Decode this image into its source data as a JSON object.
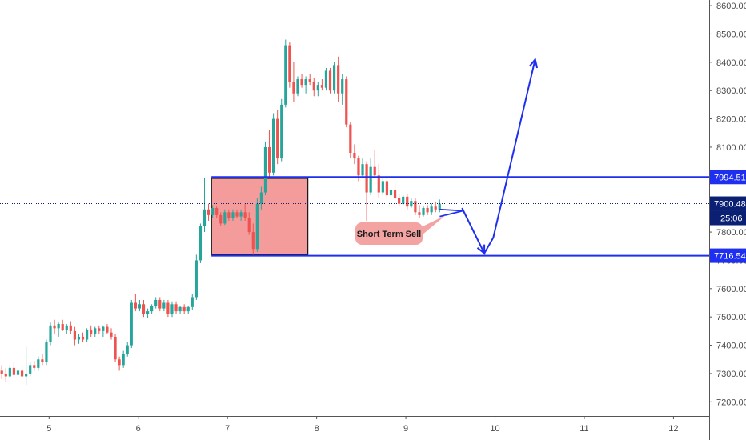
{
  "chart_data": {
    "type": "candlestick",
    "x": {
      "tick_labels": [
        "5",
        "6",
        "7",
        "8",
        "9",
        "10",
        "11",
        "12"
      ],
      "range": [
        4.45,
        12.4
      ]
    },
    "y": {
      "tick_labels": [
        "7200.00",
        "7300.00",
        "7400.00",
        "7500.00",
        "7600.00",
        "7700.00",
        "7800.00",
        "7900.00",
        "8000.00",
        "8100.00",
        "8200.00",
        "8300.00",
        "8400.00",
        "8500.00",
        "8600.00"
      ],
      "range": [
        7150,
        8620
      ]
    },
    "candles": [
      {
        "o": 7310,
        "h": 7330,
        "l": 7280,
        "c": 7300
      },
      {
        "o": 7300,
        "h": 7320,
        "l": 7270,
        "c": 7290
      },
      {
        "o": 7290,
        "h": 7330,
        "l": 7285,
        "c": 7320
      },
      {
        "o": 7320,
        "h": 7340,
        "l": 7290,
        "c": 7295
      },
      {
        "o": 7295,
        "h": 7315,
        "l": 7280,
        "c": 7310
      },
      {
        "o": 7310,
        "h": 7330,
        "l": 7285,
        "c": 7290
      },
      {
        "o": 7290,
        "h": 7395,
        "l": 7260,
        "c": 7300
      },
      {
        "o": 7300,
        "h": 7340,
        "l": 7290,
        "c": 7330
      },
      {
        "o": 7330,
        "h": 7345,
        "l": 7310,
        "c": 7320
      },
      {
        "o": 7320,
        "h": 7360,
        "l": 7310,
        "c": 7350
      },
      {
        "o": 7350,
        "h": 7370,
        "l": 7330,
        "c": 7340
      },
      {
        "o": 7340,
        "h": 7420,
        "l": 7330,
        "c": 7410
      },
      {
        "o": 7410,
        "h": 7480,
        "l": 7400,
        "c": 7470
      },
      {
        "o": 7470,
        "h": 7490,
        "l": 7440,
        "c": 7460
      },
      {
        "o": 7460,
        "h": 7480,
        "l": 7430,
        "c": 7475
      },
      {
        "o": 7475,
        "h": 7490,
        "l": 7450,
        "c": 7455
      },
      {
        "o": 7455,
        "h": 7475,
        "l": 7440,
        "c": 7470
      },
      {
        "o": 7470,
        "h": 7485,
        "l": 7440,
        "c": 7450
      },
      {
        "o": 7450,
        "h": 7465,
        "l": 7400,
        "c": 7420
      },
      {
        "o": 7420,
        "h": 7440,
        "l": 7405,
        "c": 7430
      },
      {
        "o": 7430,
        "h": 7445,
        "l": 7410,
        "c": 7420
      },
      {
        "o": 7420,
        "h": 7460,
        "l": 7410,
        "c": 7455
      },
      {
        "o": 7455,
        "h": 7470,
        "l": 7430,
        "c": 7440
      },
      {
        "o": 7440,
        "h": 7465,
        "l": 7430,
        "c": 7460
      },
      {
        "o": 7460,
        "h": 7470,
        "l": 7440,
        "c": 7450
      },
      {
        "o": 7450,
        "h": 7470,
        "l": 7430,
        "c": 7465
      },
      {
        "o": 7465,
        "h": 7475,
        "l": 7440,
        "c": 7445
      },
      {
        "o": 7445,
        "h": 7460,
        "l": 7420,
        "c": 7430
      },
      {
        "o": 7430,
        "h": 7440,
        "l": 7340,
        "c": 7350
      },
      {
        "o": 7350,
        "h": 7360,
        "l": 7310,
        "c": 7330
      },
      {
        "o": 7330,
        "h": 7380,
        "l": 7320,
        "c": 7370
      },
      {
        "o": 7370,
        "h": 7410,
        "l": 7360,
        "c": 7400
      },
      {
        "o": 7400,
        "h": 7560,
        "l": 7390,
        "c": 7550
      },
      {
        "o": 7550,
        "h": 7580,
        "l": 7520,
        "c": 7530
      },
      {
        "o": 7530,
        "h": 7560,
        "l": 7520,
        "c": 7545
      },
      {
        "o": 7545,
        "h": 7560,
        "l": 7500,
        "c": 7510
      },
      {
        "o": 7510,
        "h": 7530,
        "l": 7495,
        "c": 7520
      },
      {
        "o": 7520,
        "h": 7545,
        "l": 7510,
        "c": 7540
      },
      {
        "o": 7540,
        "h": 7570,
        "l": 7530,
        "c": 7560
      },
      {
        "o": 7560,
        "h": 7570,
        "l": 7520,
        "c": 7530
      },
      {
        "o": 7530,
        "h": 7560,
        "l": 7520,
        "c": 7550
      },
      {
        "o": 7550,
        "h": 7560,
        "l": 7500,
        "c": 7510
      },
      {
        "o": 7510,
        "h": 7555,
        "l": 7500,
        "c": 7545
      },
      {
        "o": 7545,
        "h": 7555,
        "l": 7510,
        "c": 7520
      },
      {
        "o": 7520,
        "h": 7540,
        "l": 7510,
        "c": 7535
      },
      {
        "o": 7535,
        "h": 7545,
        "l": 7510,
        "c": 7520
      },
      {
        "o": 7520,
        "h": 7540,
        "l": 7510,
        "c": 7535
      },
      {
        "o": 7535,
        "h": 7580,
        "l": 7525,
        "c": 7570
      },
      {
        "o": 7570,
        "h": 7720,
        "l": 7560,
        "c": 7700
      },
      {
        "o": 7700,
        "h": 7830,
        "l": 7690,
        "c": 7820
      },
      {
        "o": 7820,
        "h": 7990,
        "l": 7800,
        "c": 7880
      },
      {
        "o": 7880,
        "h": 7900,
        "l": 7840,
        "c": 7860
      },
      {
        "o": 7860,
        "h": 7895,
        "l": 7850,
        "c": 7885
      },
      {
        "o": 7885,
        "h": 7890,
        "l": 7850,
        "c": 7860
      },
      {
        "o": 7860,
        "h": 7870,
        "l": 7820,
        "c": 7830
      },
      {
        "o": 7830,
        "h": 7880,
        "l": 7825,
        "c": 7870
      },
      {
        "o": 7870,
        "h": 7880,
        "l": 7840,
        "c": 7850
      },
      {
        "o": 7850,
        "h": 7880,
        "l": 7840,
        "c": 7870
      },
      {
        "o": 7870,
        "h": 7880,
        "l": 7850,
        "c": 7855
      },
      {
        "o": 7855,
        "h": 7880,
        "l": 7840,
        "c": 7870
      },
      {
        "o": 7870,
        "h": 7900,
        "l": 7840,
        "c": 7850
      },
      {
        "o": 7850,
        "h": 7870,
        "l": 7790,
        "c": 7800
      },
      {
        "o": 7800,
        "h": 7830,
        "l": 7720,
        "c": 7740
      },
      {
        "o": 7740,
        "h": 7920,
        "l": 7730,
        "c": 7900
      },
      {
        "o": 7900,
        "h": 7960,
        "l": 7880,
        "c": 7940
      },
      {
        "o": 7940,
        "h": 8120,
        "l": 7930,
        "c": 8100
      },
      {
        "o": 8100,
        "h": 8160,
        "l": 7990,
        "c": 8010
      },
      {
        "o": 8010,
        "h": 8220,
        "l": 8000,
        "c": 8200
      },
      {
        "o": 8200,
        "h": 8230,
        "l": 8040,
        "c": 8060
      },
      {
        "o": 8060,
        "h": 8270,
        "l": 8050,
        "c": 8250
      },
      {
        "o": 8250,
        "h": 8480,
        "l": 8240,
        "c": 8460
      },
      {
        "o": 8460,
        "h": 8470,
        "l": 8310,
        "c": 8330
      },
      {
        "o": 8330,
        "h": 8400,
        "l": 8260,
        "c": 8290
      },
      {
        "o": 8290,
        "h": 8350,
        "l": 8280,
        "c": 8340
      },
      {
        "o": 8340,
        "h": 8360,
        "l": 8310,
        "c": 8320
      },
      {
        "o": 8320,
        "h": 8350,
        "l": 8290,
        "c": 8340
      },
      {
        "o": 8340,
        "h": 8360,
        "l": 8320,
        "c": 8330
      },
      {
        "o": 8330,
        "h": 8345,
        "l": 8280,
        "c": 8300
      },
      {
        "o": 8300,
        "h": 8330,
        "l": 8280,
        "c": 8320
      },
      {
        "o": 8320,
        "h": 8340,
        "l": 8300,
        "c": 8310
      },
      {
        "o": 8310,
        "h": 8380,
        "l": 8300,
        "c": 8370
      },
      {
        "o": 8370,
        "h": 8380,
        "l": 8290,
        "c": 8300
      },
      {
        "o": 8300,
        "h": 8400,
        "l": 8290,
        "c": 8390
      },
      {
        "o": 8390,
        "h": 8420,
        "l": 8260,
        "c": 8290
      },
      {
        "o": 8290,
        "h": 8360,
        "l": 8250,
        "c": 8340
      },
      {
        "o": 8340,
        "h": 8350,
        "l": 8170,
        "c": 8180
      },
      {
        "o": 8180,
        "h": 8190,
        "l": 8060,
        "c": 8080
      },
      {
        "o": 8080,
        "h": 8110,
        "l": 8040,
        "c": 8060
      },
      {
        "o": 8060,
        "h": 8070,
        "l": 7980,
        "c": 8000
      },
      {
        "o": 8000,
        "h": 8060,
        "l": 7990,
        "c": 8040
      },
      {
        "o": 8040,
        "h": 8050,
        "l": 7840,
        "c": 7940
      },
      {
        "o": 7940,
        "h": 8060,
        "l": 7930,
        "c": 8030
      },
      {
        "o": 8030,
        "h": 8090,
        "l": 7990,
        "c": 8000
      },
      {
        "o": 8000,
        "h": 8040,
        "l": 7920,
        "c": 7940
      },
      {
        "o": 7940,
        "h": 7990,
        "l": 7930,
        "c": 7980
      },
      {
        "o": 7980,
        "h": 8000,
        "l": 7920,
        "c": 7930
      },
      {
        "o": 7930,
        "h": 7960,
        "l": 7910,
        "c": 7950
      },
      {
        "o": 7950,
        "h": 7970,
        "l": 7910,
        "c": 7920
      },
      {
        "o": 7920,
        "h": 7935,
        "l": 7890,
        "c": 7900
      },
      {
        "o": 7900,
        "h": 7930,
        "l": 7895,
        "c": 7925
      },
      {
        "o": 7925,
        "h": 7935,
        "l": 7880,
        "c": 7890
      },
      {
        "o": 7890,
        "h": 7920,
        "l": 7885,
        "c": 7910
      },
      {
        "o": 7910,
        "h": 7920,
        "l": 7860,
        "c": 7870
      },
      {
        "o": 7870,
        "h": 7895,
        "l": 7850,
        "c": 7860
      },
      {
        "o": 7860,
        "h": 7890,
        "l": 7855,
        "c": 7885
      },
      {
        "o": 7885,
        "h": 7895,
        "l": 7860,
        "c": 7870
      },
      {
        "o": 7870,
        "h": 7900,
        "l": 7860,
        "c": 7890
      },
      {
        "o": 7890,
        "h": 7905,
        "l": 7870,
        "c": 7880
      },
      {
        "o": 7880,
        "h": 7915,
        "l": 7870,
        "c": 7900
      }
    ],
    "horizontal_lines": [
      {
        "value": 7994.51,
        "label": "7994.51",
        "color": "#1e2ff0"
      },
      {
        "value": 7716.54,
        "label": "7716.54",
        "color": "#1e2ff0"
      }
    ],
    "current_price": {
      "value": 7900.48,
      "label": "7900.48",
      "countdown": "25:06",
      "color": "#0b1f73"
    },
    "zone": {
      "x_start": 6.82,
      "x_end": 7.9,
      "y_low": 7720,
      "y_high": 7990,
      "color": "#f28b8b"
    },
    "annotation": {
      "text": "Short Term Sell",
      "color": "#f4a3a3"
    },
    "projection": [
      {
        "x": 9.63,
        "y": 7885
      },
      {
        "x": 9.88,
        "y": 7725
      },
      {
        "x": 9.98,
        "y": 7780
      },
      {
        "x": 10.45,
        "y": 8410
      }
    ],
    "colors": {
      "up": "#26a69a",
      "down": "#ef5350",
      "drawing": "#1e2ff0"
    },
    "x_start": 4.47,
    "x_step": 0.04545
  }
}
